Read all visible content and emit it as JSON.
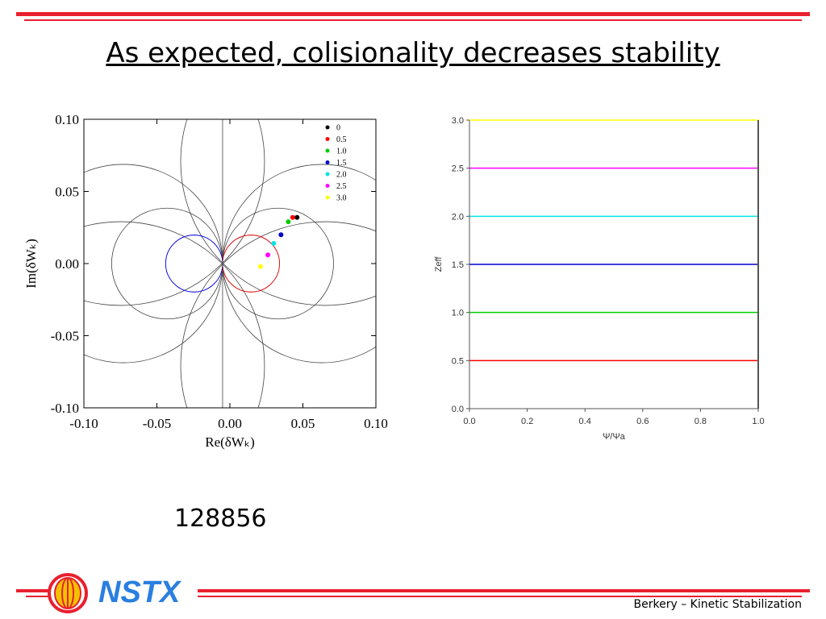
{
  "slide": {
    "title": "As expected, colisionality decreases stability",
    "shot_number": "128856",
    "footer": "Berkery – Kinetic Stabilization",
    "logo_text": "NSTX",
    "accent_color": "#e8202f",
    "logo_color": "#2a7fe0"
  },
  "chart_data": [
    {
      "type": "scatter",
      "xlabel": "Re(δWₖ)",
      "ylabel": "Im(δWₖ)",
      "xlim": [
        -0.1,
        0.1
      ],
      "ylim": [
        -0.1,
        0.1
      ],
      "xticks": [
        "-0.10",
        "-0.05",
        "0.00",
        "0.05",
        "0.10"
      ],
      "yticks": [
        "0.10",
        "0.05",
        "0.00",
        "-0.05",
        "-0.10"
      ],
      "legend_position": "top-right",
      "series": [
        {
          "name": "0",
          "color": "#000000",
          "x": 0.046,
          "y": 0.032
        },
        {
          "name": "0.5",
          "color": "#ff0000",
          "x": 0.043,
          "y": 0.032
        },
        {
          "name": "1.0",
          "color": "#00cc00",
          "x": 0.04,
          "y": 0.029
        },
        {
          "name": "1.5",
          "color": "#0000cc",
          "x": 0.035,
          "y": 0.02
        },
        {
          "name": "2.0",
          "color": "#00e5e5",
          "x": 0.03,
          "y": 0.014
        },
        {
          "name": "2.5",
          "color": "#ff00ff",
          "x": 0.026,
          "y": 0.006
        },
        {
          "name": "3.0",
          "color": "#ffff00",
          "x": 0.021,
          "y": -0.002
        }
      ],
      "contours": {
        "description": "stability contour circles tangent at origin",
        "right_circle_radii": [
          0.0195,
          0.038,
          0.068
        ],
        "left_circle_radii": [
          0.0195,
          0.038,
          0.068
        ],
        "top_circle_radii": [
          0.07
        ],
        "bottom_circle_radii": [
          0.07
        ],
        "colored_circle_radius": 0.0195,
        "colored_right_color": "#ff0000",
        "colored_left_color": "#0000ff"
      }
    },
    {
      "type": "line",
      "xlabel": "Ψ/Ψa",
      "ylabel": "Zeff",
      "xlim": [
        0.0,
        1.0
      ],
      "ylim": [
        0.0,
        3.0
      ],
      "xticks": [
        "0.0",
        "0.2",
        "0.4",
        "0.6",
        "0.8",
        "1.0"
      ],
      "yticks": [
        "3.0",
        "2.5",
        "2.0",
        "1.5",
        "1.0",
        "0.5",
        "0.0"
      ],
      "series": [
        {
          "color": "#ff0000",
          "x": [
            0.0,
            1.0
          ],
          "y": [
            0.5,
            0.5
          ]
        },
        {
          "color": "#00cc00",
          "x": [
            0.0,
            1.0
          ],
          "y": [
            1.0,
            1.0
          ]
        },
        {
          "color": "#0000cc",
          "x": [
            0.0,
            1.0
          ],
          "y": [
            1.5,
            1.5
          ]
        },
        {
          "color": "#00e5e5",
          "x": [
            0.0,
            1.0
          ],
          "y": [
            2.0,
            2.0
          ]
        },
        {
          "color": "#ff00ff",
          "x": [
            0.0,
            1.0
          ],
          "y": [
            2.5,
            2.5
          ]
        },
        {
          "color": "#ffff00",
          "x": [
            0.0,
            1.0
          ],
          "y": [
            3.0,
            3.0
          ]
        }
      ]
    }
  ]
}
